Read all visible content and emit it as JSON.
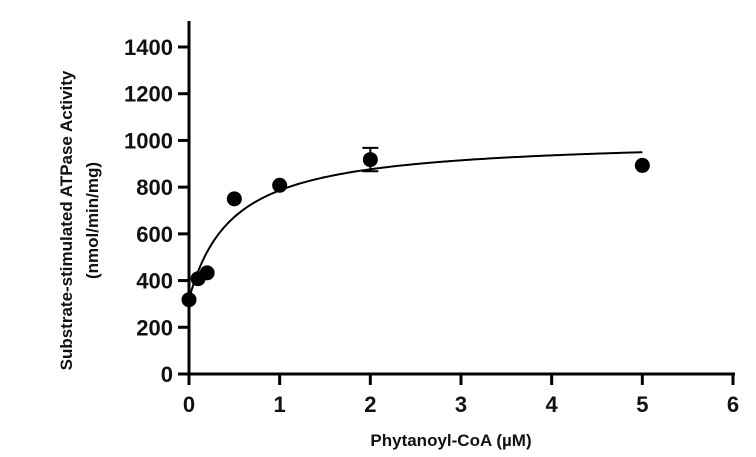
{
  "chart_data": {
    "type": "scatter",
    "title": "",
    "xlabel": "Phytanoyl-CoA (µM)",
    "ylabel_line1": "Substrate-stimulated ATPase Activity",
    "ylabel_line2": "(nmol/min/mg)",
    "xlim": [
      0,
      6
    ],
    "ylim": [
      0,
      1400
    ],
    "x_ticks": [
      0,
      1,
      2,
      3,
      4,
      5,
      6
    ],
    "y_ticks": [
      0,
      200,
      400,
      600,
      800,
      1000,
      1200,
      1400
    ],
    "grid": false,
    "legend": "none",
    "marker_color": "#000000",
    "points": [
      {
        "x": 0,
        "y": 318
      },
      {
        "x": 0.1,
        "y": 408
      },
      {
        "x": 0.2,
        "y": 433
      },
      {
        "x": 0.5,
        "y": 750
      },
      {
        "x": 1,
        "y": 808
      },
      {
        "x": 2,
        "y": 918,
        "err": 50
      },
      {
        "x": 5,
        "y": 893
      }
    ],
    "fit_curve": {
      "model": "basal + Vmax * x / (Km + x)",
      "basal": 320,
      "vmax": 690,
      "km": 0.48,
      "x_range": [
        0,
        5
      ],
      "color": "#000000"
    }
  }
}
